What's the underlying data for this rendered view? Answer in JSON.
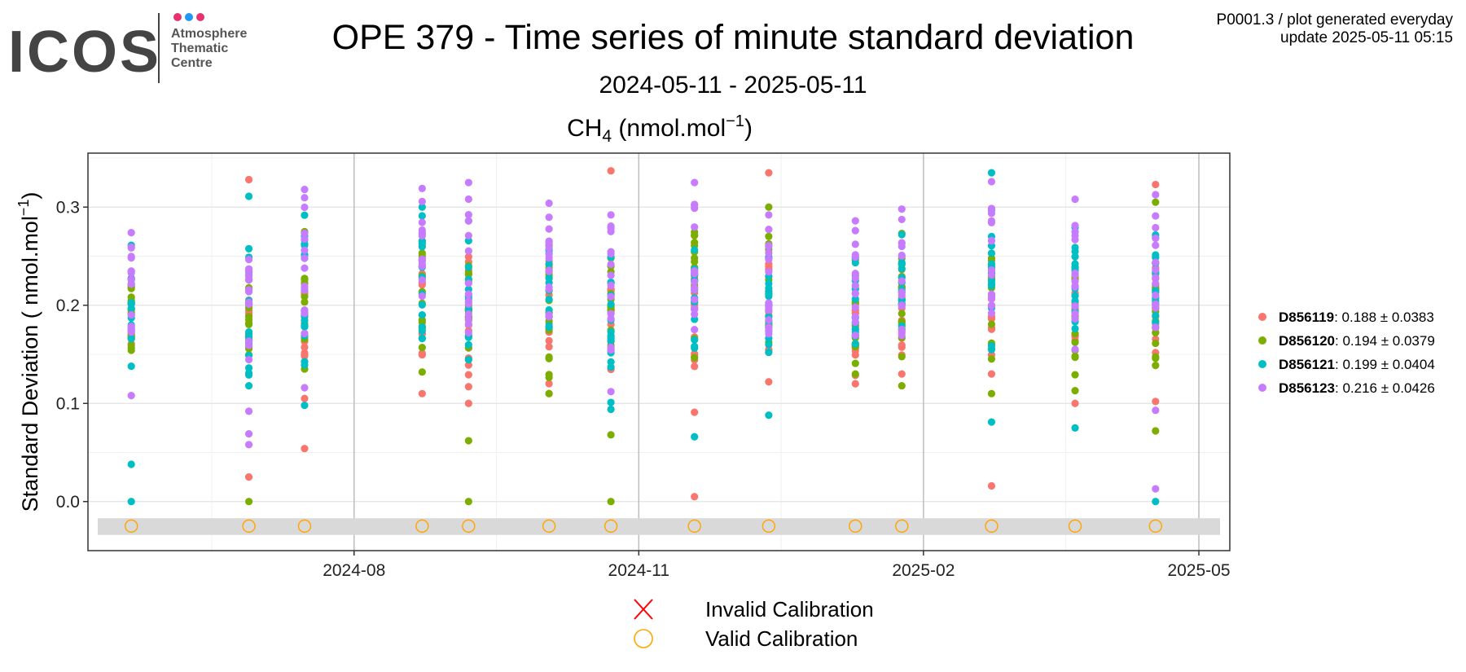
{
  "logo": {
    "wordmark": "ICOS",
    "line1": "Atmosphere",
    "line2": "Thematic",
    "line3": "Centre",
    "dot_colors": [
      "#e5336f",
      "#2196f3",
      "#e5336f"
    ]
  },
  "header": {
    "title": "OPE 379 - Time series of minute standard deviation",
    "subtitle": "2024-05-11 - 2025-05-11",
    "info_line1": "P0001.3 / plot generated everyday",
    "info_line2": "update  2025-05-11 05:15"
  },
  "chart_data": {
    "type": "scatter",
    "panel_title": {
      "base": "CH",
      "sub": "4",
      "unit_pre": " (nmol.mol",
      "sup": "−1",
      "unit_post": ")"
    },
    "ylabel": {
      "pre": "Standard Deviation ( nmol.mol",
      "sup": "−1",
      "post": ")"
    },
    "x_ticks": [
      "2024-08",
      "2024-11",
      "2025-02",
      "2025-05"
    ],
    "x_tick_dates": [
      "2024-08-01",
      "2024-11-01",
      "2025-02-01",
      "2025-05-01"
    ],
    "x_range": [
      "2024-05-07",
      "2025-05-11"
    ],
    "y_ticks": [
      "0.0",
      "0.1",
      "0.2",
      "0.3"
    ],
    "y_range": [
      -0.05,
      0.355
    ],
    "grid": true,
    "legend_placement": "right",
    "measurement_dates": [
      "2024-05-21",
      "2024-06-28",
      "2024-07-16",
      "2024-08-23",
      "2024-09-07",
      "2024-10-03",
      "2024-10-23",
      "2024-11-19",
      "2024-12-13",
      "2025-01-10",
      "2025-01-25",
      "2025-02-23",
      "2025-03-22",
      "2025-04-17"
    ],
    "series": [
      {
        "name": "D856119",
        "stat": "0.188 ± 0.0383",
        "color": "#F8766D",
        "spread": [
          [
            0.16,
            0.24
          ],
          [
            0.14,
            0.25
          ],
          [
            0.13,
            0.22
          ],
          [
            0.12,
            0.27
          ],
          [
            0.12,
            0.26
          ],
          [
            0.12,
            0.26
          ],
          [
            0.13,
            0.24
          ],
          [
            0.13,
            0.24
          ],
          [
            0.14,
            0.26
          ],
          [
            0.12,
            0.23
          ],
          [
            0.12,
            0.24
          ],
          [
            0.14,
            0.25
          ],
          [
            0.12,
            0.24
          ],
          [
            0.15,
            0.25
          ]
        ],
        "extremes": [
          [],
          [
            0.328,
            0.025
          ],
          [
            0.105,
            0.054
          ],
          [
            0.11
          ],
          [
            0.117,
            0.1
          ],
          [
            0.11
          ],
          [
            0.337,
            0.135
          ],
          [
            0.091,
            0.005
          ],
          [
            0.335,
            0.122
          ],
          [
            0.12
          ],
          [
            0.13
          ],
          [
            0.13,
            0.016
          ],
          [
            0.1
          ],
          [
            0.323,
            0.102
          ]
        ]
      },
      {
        "name": "D856120",
        "stat": "0.194 ± 0.0379",
        "color": "#7CAE00",
        "spread": [
          [
            0.15,
            0.24
          ],
          [
            0.13,
            0.25
          ],
          [
            0.14,
            0.28
          ],
          [
            0.14,
            0.28
          ],
          [
            0.14,
            0.25
          ],
          [
            0.12,
            0.27
          ],
          [
            0.15,
            0.26
          ],
          [
            0.14,
            0.3
          ],
          [
            0.14,
            0.3
          ],
          [
            0.13,
            0.26
          ],
          [
            0.13,
            0.27
          ],
          [
            0.12,
            0.26
          ],
          [
            0.12,
            0.26
          ],
          [
            0.13,
            0.25
          ]
        ],
        "extremes": [
          [],
          [
            0.0
          ],
          [
            0.135
          ],
          [
            0.132
          ],
          [
            0.062,
            0.0
          ],
          [
            0.11
          ],
          [
            0.068,
            0.0
          ],
          [
            0.302
          ],
          [
            0.3
          ],
          [
            0.13
          ],
          [
            0.118
          ],
          [
            0.11
          ],
          [
            0.113
          ],
          [
            0.305,
            0.072
          ]
        ]
      },
      {
        "name": "D856121",
        "stat": "0.199 ± 0.0404",
        "color": "#00BFC4",
        "spread": [
          [
            0.14,
            0.26
          ],
          [
            0.12,
            0.27
          ],
          [
            0.12,
            0.3
          ],
          [
            0.14,
            0.3
          ],
          [
            0.13,
            0.28
          ],
          [
            0.14,
            0.26
          ],
          [
            0.13,
            0.25
          ],
          [
            0.13,
            0.29
          ],
          [
            0.13,
            0.26
          ],
          [
            0.14,
            0.25
          ],
          [
            0.15,
            0.29
          ],
          [
            0.14,
            0.29
          ],
          [
            0.13,
            0.29
          ],
          [
            0.14,
            0.28
          ]
        ],
        "extremes": [
          [
            0.038,
            0.0
          ],
          [
            0.311,
            0.118
          ],
          [
            0.098
          ],
          [
            0.3
          ],
          [
            0.286
          ],
          [],
          [
            0.101,
            0.094
          ],
          [
            0.066
          ],
          [
            0.088
          ],
          [],
          [
            0.272
          ],
          [
            0.335,
            0.081
          ],
          [
            0.075
          ],
          [
            0.0
          ]
        ]
      },
      {
        "name": "D856123",
        "stat": "0.216 ± 0.0426",
        "color": "#C77CFF",
        "spread": [
          [
            0.16,
            0.28
          ],
          [
            0.14,
            0.27
          ],
          [
            0.15,
            0.31
          ],
          [
            0.16,
            0.31
          ],
          [
            0.15,
            0.32
          ],
          [
            0.16,
            0.3
          ],
          [
            0.15,
            0.29
          ],
          [
            0.15,
            0.32
          ],
          [
            0.15,
            0.29
          ],
          [
            0.16,
            0.28
          ],
          [
            0.16,
            0.29
          ],
          [
            0.16,
            0.32
          ],
          [
            0.16,
            0.3
          ],
          [
            0.16,
            0.31
          ]
        ],
        "extremes": [
          [
            0.108
          ],
          [
            0.092,
            0.069,
            0.058
          ],
          [
            0.318,
            0.116
          ],
          [
            0.319
          ],
          [
            0.325
          ],
          [
            0.304
          ],
          [
            0.112,
            0.292
          ],
          [
            0.325
          ],
          [
            0.292
          ],
          [
            0.286
          ],
          [
            0.298
          ],
          [
            0.326
          ],
          [
            0.308
          ],
          [
            0.093,
            0.013
          ]
        ]
      }
    ],
    "calibration_legend": {
      "invalid": {
        "label": "Invalid Calibration",
        "color": "#ff0000"
      },
      "valid": {
        "label": "Valid Calibration",
        "color": "#ffa500"
      }
    },
    "calibration_band": [
      -0.034,
      -0.017
    ],
    "calibration_y": -0.025
  }
}
